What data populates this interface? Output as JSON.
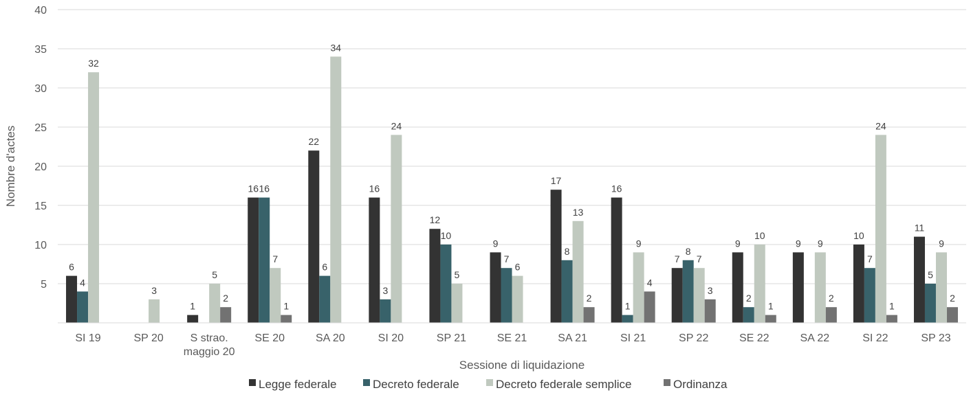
{
  "chart_data": {
    "type": "bar",
    "title": "",
    "xlabel": "Sessione di liquidazione",
    "ylabel": "Nombre d'actes",
    "ylim": [
      0,
      40
    ],
    "yticks": [
      5,
      10,
      15,
      20,
      25,
      30,
      35,
      40
    ],
    "grid": true,
    "legend_position": "bottom",
    "categories": [
      [
        "SI 19"
      ],
      [
        "SP 20"
      ],
      [
        "S strao.",
        "maggio 20"
      ],
      [
        "SE 20"
      ],
      [
        "SA 20"
      ],
      [
        "SI 20"
      ],
      [
        "SP 21"
      ],
      [
        "SE 21"
      ],
      [
        "SA 21"
      ],
      [
        "SI 21"
      ],
      [
        "SP 22"
      ],
      [
        "SE 22"
      ],
      [
        "SA 22"
      ],
      [
        "SI 22"
      ],
      [
        "SP 23"
      ]
    ],
    "series": [
      {
        "name": "Legge federale",
        "color": "#333333",
        "values": [
          6,
          null,
          1,
          16,
          22,
          16,
          12,
          9,
          17,
          16,
          7,
          9,
          9,
          10,
          11
        ]
      },
      {
        "name": "Decreto federale",
        "color": "#38626a",
        "values": [
          4,
          null,
          null,
          16,
          6,
          3,
          10,
          7,
          8,
          1,
          8,
          2,
          null,
          7,
          5
        ]
      },
      {
        "name": "Decreto federale semplice",
        "color": "#c0c9bf",
        "values": [
          32,
          3,
          5,
          7,
          34,
          24,
          5,
          6,
          13,
          9,
          7,
          10,
          9,
          24,
          9
        ]
      },
      {
        "name": "Ordinanza",
        "color": "#727272",
        "values": [
          null,
          null,
          2,
          1,
          null,
          null,
          null,
          null,
          2,
          4,
          3,
          1,
          2,
          1,
          2
        ]
      }
    ]
  }
}
